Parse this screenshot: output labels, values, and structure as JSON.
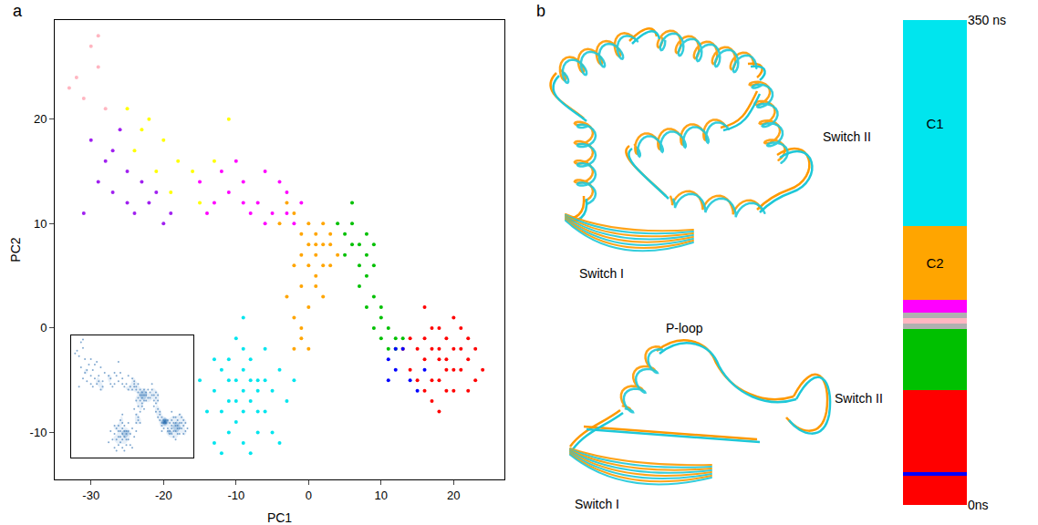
{
  "chart_data": [
    {
      "type": "scatter",
      "x_label": "PC1",
      "y_label": "PC2",
      "xlim": [
        -35,
        27
      ],
      "ylim": [
        -14.5,
        29.5
      ],
      "xticks": [
        -30,
        -20,
        -10,
        0,
        10,
        20
      ],
      "yticks": [
        -10,
        0,
        10,
        20
      ],
      "grid": false,
      "marker": "circle",
      "series": [
        {
          "color": "#00e5ee",
          "x": [
            -9,
            -10,
            -8,
            -11,
            -7,
            -9,
            -12,
            -6,
            -10,
            -8,
            -13,
            -5,
            -11,
            -7,
            -9,
            -14,
            -4,
            -12,
            -8,
            -6,
            -15,
            -3,
            -10,
            -13,
            -5,
            -9,
            -11,
            -7,
            -8,
            -10,
            -12,
            -6,
            -9,
            -11,
            -7,
            -16,
            -2,
            -9,
            -4,
            -13
          ],
          "y": [
            -6,
            -5,
            -7,
            -7,
            -5,
            -8,
            -4,
            -8,
            -9,
            -3,
            -6,
            -6,
            -10,
            -10,
            -2,
            -8,
            -4,
            -12,
            -12,
            -2,
            -5,
            -7,
            -1,
            -3,
            -10,
            -11,
            -3,
            -8,
            -5,
            -7,
            -8,
            -5,
            -4,
            -5,
            -6,
            -9,
            -5,
            1,
            -11,
            -11
          ]
        },
        {
          "color": "#ffa500",
          "x": [
            1,
            0,
            2,
            1,
            -1,
            3,
            0,
            2,
            1,
            -1,
            3,
            0,
            2,
            1,
            -2,
            4,
            -1,
            0,
            -2,
            -1,
            0,
            -3,
            -2,
            -4,
            -3,
            2,
            -1,
            1,
            3,
            -2
          ],
          "y": [
            7,
            8,
            6,
            9,
            7,
            8,
            6,
            8,
            5,
            9,
            6,
            10,
            10,
            8,
            6,
            7,
            4,
            2,
            1,
            -1,
            -2,
            3,
            11,
            10,
            12,
            3,
            0,
            4,
            9,
            -2
          ]
        },
        {
          "color": "#00c000",
          "x": [
            5,
            6,
            7,
            6,
            8,
            7,
            5,
            8,
            9,
            7,
            8,
            9,
            10,
            9,
            10,
            11,
            12,
            11,
            6,
            4,
            8,
            10,
            12,
            13,
            9
          ],
          "y": [
            9,
            8,
            8,
            10,
            7,
            6,
            7,
            9,
            6,
            4,
            2,
            3,
            1,
            0,
            -1,
            0,
            -1,
            -2,
            12,
            10,
            5,
            2,
            -2,
            -1,
            8
          ]
        },
        {
          "color": "#ff0000",
          "x": [
            18,
            17,
            19,
            16,
            20,
            18,
            15,
            21,
            17,
            19,
            16,
            22,
            18,
            20,
            14,
            23,
            17,
            19,
            21,
            15,
            24,
            20,
            16,
            18,
            22,
            13,
            19,
            17,
            21,
            23,
            18,
            20,
            14,
            16,
            22
          ],
          "y": [
            -3,
            -2,
            -4,
            -3,
            -2,
            -5,
            -2,
            -4,
            -5,
            -1,
            -1,
            -3,
            0,
            -6,
            -4,
            -2,
            -7,
            -3,
            0,
            -5,
            -4,
            1,
            -6,
            -2,
            -6,
            -2,
            -6,
            0,
            -2,
            -5,
            -8,
            -4,
            -1,
            2,
            -1
          ]
        },
        {
          "color": "#0000ff",
          "x": [
            11,
            12,
            13,
            14,
            15,
            12,
            16,
            11
          ],
          "y": [
            -3,
            -4,
            -2,
            -5,
            -6,
            -2,
            -4,
            -5
          ]
        },
        {
          "color": "#ff00ff",
          "x": [
            -13,
            -11,
            -9,
            -7,
            -5,
            -3,
            -2,
            -6,
            -8,
            -10,
            -4,
            -12,
            -1,
            -14,
            -6,
            -9,
            -3,
            -15
          ],
          "y": [
            12,
            13,
            14,
            12,
            11,
            13,
            10,
            15,
            11,
            16,
            14,
            15,
            12,
            11,
            10,
            12,
            11,
            14
          ]
        },
        {
          "color": "#ffff00",
          "x": [
            -25,
            -22,
            -20,
            -18,
            -16,
            -13,
            -11,
            -24,
            -19,
            -15,
            -21,
            -23
          ],
          "y": [
            21,
            20,
            18,
            16,
            15,
            16,
            20,
            17,
            13,
            12,
            15,
            19
          ]
        },
        {
          "color": "#a020f0",
          "x": [
            -30,
            -28,
            -27,
            -25,
            -24,
            -22,
            -20,
            -26,
            -29,
            -31,
            -23,
            -21,
            -27,
            -25,
            -19
          ],
          "y": [
            18,
            16,
            13,
            15,
            11,
            12,
            10,
            19,
            14,
            11,
            14,
            13,
            17,
            12,
            11
          ]
        },
        {
          "color": "#ffb6c1",
          "x": [
            -32,
            -30,
            -29,
            -28,
            -31,
            -29,
            -33
          ],
          "y": [
            24,
            27,
            28,
            21,
            22,
            25,
            23
          ]
        }
      ]
    },
    {
      "type": "density",
      "xlim": [
        -35,
        27
      ],
      "ylim": [
        -14.5,
        29.5
      ],
      "tick_labels": false,
      "color": "#2f6fb0"
    },
    {
      "type": "bar",
      "stacked": true,
      "categories": [
        null
      ],
      "ylim": [
        0,
        350
      ],
      "yticks": [
        {
          "value": 0,
          "label": "0ns"
        },
        {
          "value": 350,
          "label": "350 ns"
        }
      ],
      "tick_labels": "y",
      "series": [
        {
          "color": "#ff0000",
          "values": [
            21
          ]
        },
        {
          "color": "#0000ff",
          "values": [
            3
          ]
        },
        {
          "color": "#ff0000",
          "values": [
            59
          ]
        },
        {
          "color": "#00c000",
          "values": [
            44
          ]
        },
        {
          "color": "#b0b0b0",
          "values": [
            4
          ]
        },
        {
          "color": "#ffb6c1",
          "values": [
            4
          ]
        },
        {
          "color": "#b0b0b0",
          "values": [
            4
          ]
        },
        {
          "color": "#ff00ff",
          "values": [
            9
          ]
        },
        {
          "name": "C2",
          "color": "#ffa500",
          "values": [
            53
          ]
        },
        {
          "name": "C1",
          "color": "#00e5ee",
          "values": [
            149
          ]
        }
      ]
    }
  ],
  "panel_labels": [
    "a",
    "b"
  ],
  "structure": {
    "top": [
      "Switch II",
      "Switch I"
    ],
    "bottom": [
      "P-loop",
      "Switch II",
      "Switch I"
    ],
    "colors": [
      "#ff9900",
      "#1ec8d8"
    ]
  }
}
